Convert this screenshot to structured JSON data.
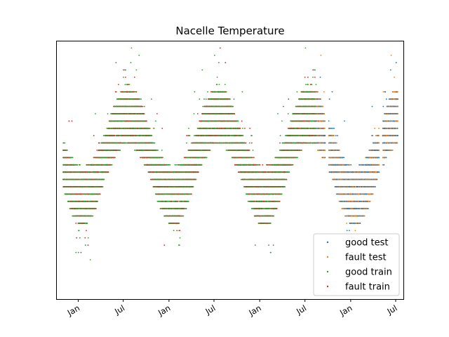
{
  "chart_data": {
    "type": "scatter",
    "title": "Nacelle Temperature",
    "xlabel": "",
    "ylabel": "",
    "x_axis_type": "date",
    "xlim": [
      "2017-10-04",
      "2021-08-01"
    ],
    "x_ticks": [
      {
        "date": "2018-01-01",
        "label": "Jan"
      },
      {
        "date": "2018-07-01",
        "label": "Jul"
      },
      {
        "date": "2019-01-01",
        "label": "Jan"
      },
      {
        "date": "2019-07-01",
        "label": "Jul"
      },
      {
        "date": "2020-01-01",
        "label": "Jan"
      },
      {
        "date": "2020-07-01",
        "label": "Jul"
      },
      {
        "date": "2021-01-01",
        "label": "Jan"
      },
      {
        "date": "2021-07-01",
        "label": "Jul"
      }
    ],
    "y_ticks_shown": false,
    "grid": false,
    "legend_position": "lower-right",
    "series": [
      {
        "name": "good test",
        "color": "#1f77b4",
        "date_range": [
          "2020-08-15",
          "2021-07-10"
        ]
      },
      {
        "name": "fault test",
        "color": "#ff7f0e",
        "date_range": [
          "2020-07-01",
          "2021-07-10"
        ]
      },
      {
        "name": "good train",
        "color": "#2ca02c",
        "date_range": [
          "2017-11-01",
          "2020-08-15"
        ]
      },
      {
        "name": "fault train",
        "color": "#d62728",
        "date_range": [
          "2017-11-01",
          "2020-08-15"
        ]
      }
    ]
  }
}
